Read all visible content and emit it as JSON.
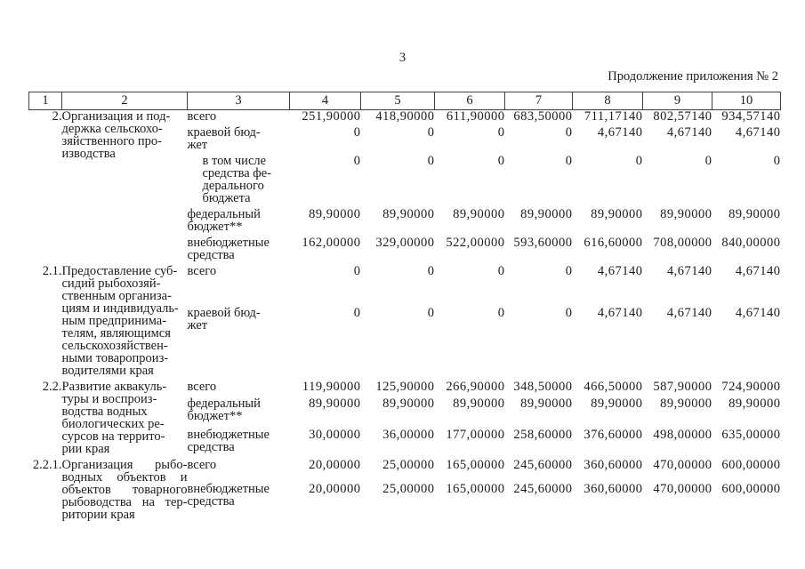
{
  "page": {
    "page_number": "3",
    "continuation_label": "Продолжение приложения № 2"
  },
  "table": {
    "column_numbers": [
      "1",
      "2",
      "3",
      "4",
      "5",
      "6",
      "7",
      "8",
      "9",
      "10"
    ],
    "entries": [
      {
        "num": "2.",
        "name_lines": [
          "Организация и под-",
          "держка сельскохо-",
          "зяйственного про-",
          "изводства"
        ],
        "justified": false,
        "budget_rows": [
          {
            "label_lines": [
              "всего"
            ],
            "indent": false,
            "values": [
              "251,90000",
              "418,90000",
              "611,90000",
              "683,50000",
              "711,17140",
              "802,57140",
              "934,57140"
            ]
          },
          {
            "label_lines": [
              "краевой бюд-",
              "жет"
            ],
            "indent": false,
            "values": [
              "0",
              "0",
              "0",
              "0",
              "4,67140",
              "4,67140",
              "4,67140"
            ]
          },
          {
            "label_lines": [
              "в том числе",
              "средства фе-",
              "дерального",
              "бюджета"
            ],
            "indent": true,
            "values": [
              "0",
              "0",
              "0",
              "0",
              "0",
              "0",
              "0"
            ]
          },
          {
            "label_lines": [
              "федеральный",
              "бюджет**"
            ],
            "indent": false,
            "values": [
              "89,90000",
              "89,90000",
              "89,90000",
              "89,90000",
              "89,90000",
              "89,90000",
              "89,90000"
            ]
          },
          {
            "label_lines": [
              "внебюджетные",
              "средства"
            ],
            "indent": false,
            "values": [
              "162,00000",
              "329,00000",
              "522,00000",
              "593,60000",
              "616,60000",
              "708,00000",
              "840,00000"
            ]
          }
        ]
      },
      {
        "num": "2.1.",
        "name_lines": [
          "Предоставление суб-",
          "сидий рыбохозяй-",
          "ственным организа-",
          "циям и индивидуаль-",
          "ным предпринима-",
          "телям, являющимся",
          "сельскохозяйствен-",
          "ными товаропроиз-",
          "водителями края"
        ],
        "justified": false,
        "budget_rows": [
          {
            "label_lines": [
              "всего"
            ],
            "indent": false,
            "values": [
              "0",
              "0",
              "0",
              "0",
              "4,67140",
              "4,67140",
              "4,67140"
            ]
          },
          {
            "label_lines": [
              "краевой бюд-",
              "жет"
            ],
            "indent": false,
            "values": [
              "0",
              "0",
              "0",
              "0",
              "4,67140",
              "4,67140",
              "4,67140"
            ]
          }
        ]
      },
      {
        "num": "2.2.",
        "name_lines": [
          "Развитие аквакуль-",
          "туры и воспроиз-",
          "водства водных",
          "биологических ре-",
          "сурсов на террито-",
          "рии края"
        ],
        "justified": false,
        "budget_rows": [
          {
            "label_lines": [
              "всего"
            ],
            "indent": false,
            "values": [
              "119,90000",
              "125,90000",
              "266,90000",
              "348,50000",
              "466,50000",
              "587,90000",
              "724,90000"
            ]
          },
          {
            "label_lines": [
              "федеральный",
              "бюджет**"
            ],
            "indent": false,
            "values": [
              "89,90000",
              "89,90000",
              "89,90000",
              "89,90000",
              "89,90000",
              "89,90000",
              "89,90000"
            ]
          },
          {
            "label_lines": [
              "внебюджетные",
              "средства"
            ],
            "indent": false,
            "values": [
              "30,00000",
              "36,00000",
              "177,00000",
              "258,60000",
              "376,60000",
              "498,00000",
              "635,00000"
            ]
          }
        ]
      },
      {
        "num": "2.2.1.",
        "name_lines": [
          "Организация рыбо-",
          "водных объектов и",
          "объектов товарного",
          "рыбоводства на тер-",
          "ритории края"
        ],
        "justified": true,
        "budget_rows": [
          {
            "label_lines": [
              "всего"
            ],
            "indent": false,
            "values": [
              "20,00000",
              "25,00000",
              "165,00000",
              "245,60000",
              "360,60000",
              "470,00000",
              "600,00000"
            ]
          },
          {
            "label_lines": [
              "внебюджетные",
              "средства"
            ],
            "indent": false,
            "values": [
              "20,00000",
              "25,00000",
              "165,00000",
              "245,60000",
              "360,60000",
              "470,00000",
              "600,00000"
            ]
          }
        ]
      }
    ]
  }
}
